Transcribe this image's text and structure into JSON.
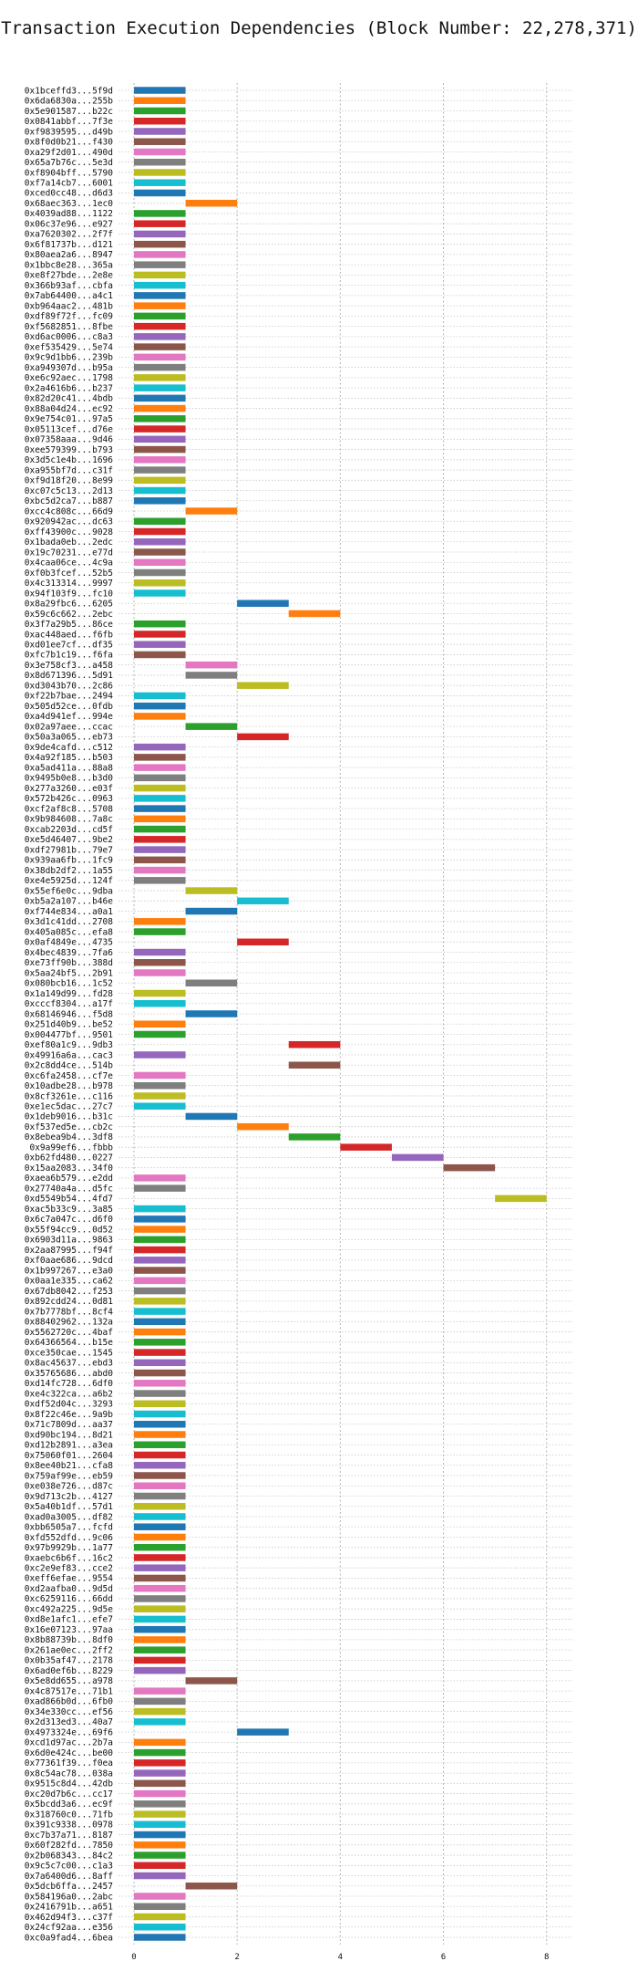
{
  "chart_data": {
    "type": "bar",
    "orientation": "horizontal-gantt",
    "title": "Transaction Execution Dependencies (Block Number: 22,278,371)",
    "xlabel": "",
    "ylabel": "",
    "xlim": [
      -0.3,
      8.5
    ],
    "xticks": [
      0,
      2,
      4,
      6,
      8
    ],
    "grid": true,
    "palette": [
      "#1f77b4",
      "#ff7f0e",
      "#2ca02c",
      "#d62728",
      "#9467bd",
      "#8c564b",
      "#e377c2",
      "#7f7f7f",
      "#bcbd22",
      "#17becf"
    ],
    "bars": [
      {
        "label": "0x1bceffd3...5f9d",
        "start": 0,
        "end": 1
      },
      {
        "label": "0x6da6830a...255b",
        "start": 0,
        "end": 1
      },
      {
        "label": "0x5e901587...b22c",
        "start": 0,
        "end": 1
      },
      {
        "label": "0x0841abbf...7f3e",
        "start": 0,
        "end": 1
      },
      {
        "label": "0xf9839595...d49b",
        "start": 0,
        "end": 1
      },
      {
        "label": "0x8f0d0b21...f430",
        "start": 0,
        "end": 1
      },
      {
        "label": "0xa29f2d01...490d",
        "start": 0,
        "end": 1
      },
      {
        "label": "0x65a7b76c...5e3d",
        "start": 0,
        "end": 1
      },
      {
        "label": "0xf8904bff...5790",
        "start": 0,
        "end": 1
      },
      {
        "label": "0xf7a14cb7...6001",
        "start": 0,
        "end": 1
      },
      {
        "label": "0xced0cc48...d6d3",
        "start": 0,
        "end": 1
      },
      {
        "label": "0x68aec363...1ec0",
        "start": 1,
        "end": 2
      },
      {
        "label": "0x4039ad88...1122",
        "start": 0,
        "end": 1
      },
      {
        "label": "0x06c37e96...e927",
        "start": 0,
        "end": 1
      },
      {
        "label": "0xa7620302...2f7f",
        "start": 0,
        "end": 1
      },
      {
        "label": "0x6f81737b...d121",
        "start": 0,
        "end": 1
      },
      {
        "label": "0x80aea2a6...8947",
        "start": 0,
        "end": 1
      },
      {
        "label": "0x1bbc8e28...365a",
        "start": 0,
        "end": 1
      },
      {
        "label": "0xe8f27bde...2e8e",
        "start": 0,
        "end": 1
      },
      {
        "label": "0x366b93af...cbfa",
        "start": 0,
        "end": 1
      },
      {
        "label": "0x7ab64400...a4c1",
        "start": 0,
        "end": 1
      },
      {
        "label": "0xb964aac2...481b",
        "start": 0,
        "end": 1
      },
      {
        "label": "0xdf89f72f...fc09",
        "start": 0,
        "end": 1
      },
      {
        "label": "0xf5682851...8fbe",
        "start": 0,
        "end": 1
      },
      {
        "label": "0xd6ac0006...c8a3",
        "start": 0,
        "end": 1
      },
      {
        "label": "0xef535429...5e74",
        "start": 0,
        "end": 1
      },
      {
        "label": "0x9c9d1bb6...239b",
        "start": 0,
        "end": 1
      },
      {
        "label": "0xa949307d...b95a",
        "start": 0,
        "end": 1
      },
      {
        "label": "0xe6c92aec...1798",
        "start": 0,
        "end": 1
      },
      {
        "label": "0x2a4616b6...b237",
        "start": 0,
        "end": 1
      },
      {
        "label": "0x82d20c41...4bdb",
        "start": 0,
        "end": 1
      },
      {
        "label": "0x88a04d24...ec92",
        "start": 0,
        "end": 1
      },
      {
        "label": "0x9e754c01...97a5",
        "start": 0,
        "end": 1
      },
      {
        "label": "0x05113cef...d76e",
        "start": 0,
        "end": 1
      },
      {
        "label": "0x07358aaa...9d46",
        "start": 0,
        "end": 1
      },
      {
        "label": "0xee579399...b793",
        "start": 0,
        "end": 1
      },
      {
        "label": "0x3d5c1e4b...1696",
        "start": 0,
        "end": 1
      },
      {
        "label": "0xa955bf7d...c31f",
        "start": 0,
        "end": 1
      },
      {
        "label": "0xf9d18f20...8e99",
        "start": 0,
        "end": 1
      },
      {
        "label": "0xc07c5c13...2d13",
        "start": 0,
        "end": 1
      },
      {
        "label": "0xbc5d2ca7...b887",
        "start": 0,
        "end": 1
      },
      {
        "label": "0xcc4c808c...66d9",
        "start": 1,
        "end": 2
      },
      {
        "label": "0x920942ac...dc63",
        "start": 0,
        "end": 1
      },
      {
        "label": "0xff43900c...9028",
        "start": 0,
        "end": 1
      },
      {
        "label": "0x1bada0eb...2edc",
        "start": 0,
        "end": 1
      },
      {
        "label": "0x19c70231...e77d",
        "start": 0,
        "end": 1
      },
      {
        "label": "0x4caa06ce...4c9a",
        "start": 0,
        "end": 1
      },
      {
        "label": "0xf0b3fcef...52b5",
        "start": 0,
        "end": 1
      },
      {
        "label": "0x4c313314...9997",
        "start": 0,
        "end": 1
      },
      {
        "label": "0x94f103f9...fc10",
        "start": 0,
        "end": 1
      },
      {
        "label": "0x8a29fbc6...6205",
        "start": 2,
        "end": 3
      },
      {
        "label": "0x59c6c662...2ebc",
        "start": 3,
        "end": 4
      },
      {
        "label": "0x3f7a29b5...86ce",
        "start": 0,
        "end": 1
      },
      {
        "label": "0xac448aed...f6fb",
        "start": 0,
        "end": 1
      },
      {
        "label": "0xd01ee7cf...df35",
        "start": 0,
        "end": 1
      },
      {
        "label": "0xfc7b1c19...f6fa",
        "start": 0,
        "end": 1
      },
      {
        "label": "0x3e758cf3...a458",
        "start": 1,
        "end": 2
      },
      {
        "label": "0x8d671396...5d91",
        "start": 1,
        "end": 2
      },
      {
        "label": "0xd3043b70...2c86",
        "start": 2,
        "end": 3
      },
      {
        "label": "0xf22b7bae...2494",
        "start": 0,
        "end": 1
      },
      {
        "label": "0x505d52ce...0fdb",
        "start": 0,
        "end": 1
      },
      {
        "label": "0xa4d941ef...994e",
        "start": 0,
        "end": 1
      },
      {
        "label": "0x02a97aee...ccac",
        "start": 1,
        "end": 2
      },
      {
        "label": "0x50a3a065...eb73",
        "start": 2,
        "end": 3
      },
      {
        "label": "0x9de4cafd...c512",
        "start": 0,
        "end": 1
      },
      {
        "label": "0x4a92f185...b503",
        "start": 0,
        "end": 1
      },
      {
        "label": "0xa5ad411a...88a8",
        "start": 0,
        "end": 1
      },
      {
        "label": "0x9495b0e8...b3d0",
        "start": 0,
        "end": 1
      },
      {
        "label": "0x277a3260...e03f",
        "start": 0,
        "end": 1
      },
      {
        "label": "0x572b426c...0963",
        "start": 0,
        "end": 1
      },
      {
        "label": "0xcf2af8c8...5708",
        "start": 0,
        "end": 1
      },
      {
        "label": "0x9b984608...7a8c",
        "start": 0,
        "end": 1
      },
      {
        "label": "0xcab2203d...cd5f",
        "start": 0,
        "end": 1
      },
      {
        "label": "0xe5d46407...9be2",
        "start": 0,
        "end": 1
      },
      {
        "label": "0xdf27981b...79e7",
        "start": 0,
        "end": 1
      },
      {
        "label": "0x939aa6fb...1fc9",
        "start": 0,
        "end": 1
      },
      {
        "label": "0x38db2df2...1a55",
        "start": 0,
        "end": 1
      },
      {
        "label": "0xe4e5925d...124f",
        "start": 0,
        "end": 1
      },
      {
        "label": "0x55ef6e0c...9dba",
        "start": 1,
        "end": 2
      },
      {
        "label": "0xb5a2a107...b46e",
        "start": 2,
        "end": 3
      },
      {
        "label": "0xf744e834...a0a1",
        "start": 1,
        "end": 2
      },
      {
        "label": "0x3d1c41dd...2708",
        "start": 0,
        "end": 1
      },
      {
        "label": "0x405a085c...efa8",
        "start": 0,
        "end": 1
      },
      {
        "label": "0x0af4849e...4735",
        "start": 2,
        "end": 3
      },
      {
        "label": "0x4bec4839...7fa6",
        "start": 0,
        "end": 1
      },
      {
        "label": "0xe73ff90b...388d",
        "start": 0,
        "end": 1
      },
      {
        "label": "0x5aa24bf5...2b91",
        "start": 0,
        "end": 1
      },
      {
        "label": "0x080bcb16...1c52",
        "start": 1,
        "end": 2
      },
      {
        "label": "0x1a149d99...fd28",
        "start": 0,
        "end": 1
      },
      {
        "label": "0xcccf8304...a17f",
        "start": 0,
        "end": 1
      },
      {
        "label": "0x68146946...f5d8",
        "start": 1,
        "end": 2
      },
      {
        "label": "0x251d40b9...be52",
        "start": 0,
        "end": 1
      },
      {
        "label": "0x004477bf...9501",
        "start": 0,
        "end": 1
      },
      {
        "label": "0xef80a1c9...9db3",
        "start": 3,
        "end": 4
      },
      {
        "label": "0x49916a6a...cac3",
        "start": 0,
        "end": 1
      },
      {
        "label": "0x2c8dd4ce...514b",
        "start": 3,
        "end": 4
      },
      {
        "label": "0xc6fa2458...cf7e",
        "start": 0,
        "end": 1
      },
      {
        "label": "0x10adbe28...b978",
        "start": 0,
        "end": 1
      },
      {
        "label": "0x8cf3261e...c116",
        "start": 0,
        "end": 1
      },
      {
        "label": "0xe1ec5dac...27c7",
        "start": 0,
        "end": 1
      },
      {
        "label": "0x1deb9016...b31c",
        "start": 1,
        "end": 2
      },
      {
        "label": "0xf537ed5e...cb2c",
        "start": 2,
        "end": 3
      },
      {
        "label": "0x8ebea9b4...3df8",
        "start": 3,
        "end": 4
      },
      {
        "label": "0x9a99ef6...fbbb",
        "start": 4,
        "end": 5
      },
      {
        "label": "0xb62fd480...0227",
        "start": 5,
        "end": 6
      },
      {
        "label": "0x15aa2083...34f0",
        "start": 6,
        "end": 7
      },
      {
        "label": "0xaea6b579...e2dd",
        "start": 0,
        "end": 1
      },
      {
        "label": "0x27740a4a...d5fc",
        "start": 0,
        "end": 1
      },
      {
        "label": "0xd5549b54...4fd7",
        "start": 7,
        "end": 8
      },
      {
        "label": "0xac5b33c9...3a85",
        "start": 0,
        "end": 1
      },
      {
        "label": "0x6c7a047c...d6f0",
        "start": 0,
        "end": 1
      },
      {
        "label": "0x55f94cc9...0d52",
        "start": 0,
        "end": 1
      },
      {
        "label": "0x6903d11a...9863",
        "start": 0,
        "end": 1
      },
      {
        "label": "0x2aa87995...f94f",
        "start": 0,
        "end": 1
      },
      {
        "label": "0xf0aae686...9dcd",
        "start": 0,
        "end": 1
      },
      {
        "label": "0x1b997267...e3a0",
        "start": 0,
        "end": 1
      },
      {
        "label": "0x0aa1e335...ca62",
        "start": 0,
        "end": 1
      },
      {
        "label": "0x67db8042...f253",
        "start": 0,
        "end": 1
      },
      {
        "label": "0x892cdd24...0d81",
        "start": 0,
        "end": 1
      },
      {
        "label": "0x7b7778bf...8cf4",
        "start": 0,
        "end": 1
      },
      {
        "label": "0x88402962...132a",
        "start": 0,
        "end": 1
      },
      {
        "label": "0x5562720c...4baf",
        "start": 0,
        "end": 1
      },
      {
        "label": "0x64366564...b15e",
        "start": 0,
        "end": 1
      },
      {
        "label": "0xce350cae...1545",
        "start": 0,
        "end": 1
      },
      {
        "label": "0x8ac45637...ebd3",
        "start": 0,
        "end": 1
      },
      {
        "label": "0x35765686...abd0",
        "start": 0,
        "end": 1
      },
      {
        "label": "0xd14fc728...6df0",
        "start": 0,
        "end": 1
      },
      {
        "label": "0xe4c322ca...a6b2",
        "start": 0,
        "end": 1
      },
      {
        "label": "0xdf52d04c...3293",
        "start": 0,
        "end": 1
      },
      {
        "label": "0x8f22c46e...9a9b",
        "start": 0,
        "end": 1
      },
      {
        "label": "0x71c7809d...aa37",
        "start": 0,
        "end": 1
      },
      {
        "label": "0xd90bc194...8d21",
        "start": 0,
        "end": 1
      },
      {
        "label": "0xd12b2891...a3ea",
        "start": 0,
        "end": 1
      },
      {
        "label": "0x75060f01...2604",
        "start": 0,
        "end": 1
      },
      {
        "label": "0x8ee40b21...cfa8",
        "start": 0,
        "end": 1
      },
      {
        "label": "0x759af99e...eb59",
        "start": 0,
        "end": 1
      },
      {
        "label": "0xe038e726...d87c",
        "start": 0,
        "end": 1
      },
      {
        "label": "0x9d713c2b...4127",
        "start": 0,
        "end": 1
      },
      {
        "label": "0x5a40b1df...57d1",
        "start": 0,
        "end": 1
      },
      {
        "label": "0xad0a3005...df82",
        "start": 0,
        "end": 1
      },
      {
        "label": "0xbb6505a7...fcfd",
        "start": 0,
        "end": 1
      },
      {
        "label": "0xfd552dfd...9c06",
        "start": 0,
        "end": 1
      },
      {
        "label": "0x97b9929b...1a77",
        "start": 0,
        "end": 1
      },
      {
        "label": "0xaebc6b6f...16c2",
        "start": 0,
        "end": 1
      },
      {
        "label": "0xc2e9ef83...cce2",
        "start": 0,
        "end": 1
      },
      {
        "label": "0xeff6efae...9554",
        "start": 0,
        "end": 1
      },
      {
        "label": "0xd2aafba0...9d5d",
        "start": 0,
        "end": 1
      },
      {
        "label": "0xc6259116...66dd",
        "start": 0,
        "end": 1
      },
      {
        "label": "0xc492a225...9d5e",
        "start": 0,
        "end": 1
      },
      {
        "label": "0xd8e1afc1...efe7",
        "start": 0,
        "end": 1
      },
      {
        "label": "0x16e07123...97aa",
        "start": 0,
        "end": 1
      },
      {
        "label": "0x8b88739b...8df0",
        "start": 0,
        "end": 1
      },
      {
        "label": "0x261ae0ec...2ff2",
        "start": 0,
        "end": 1
      },
      {
        "label": "0x0b35af47...2178",
        "start": 0,
        "end": 1
      },
      {
        "label": "0x6ad0ef6b...8229",
        "start": 0,
        "end": 1
      },
      {
        "label": "0x5e8dd655...a978",
        "start": 1,
        "end": 2
      },
      {
        "label": "0x4c87517e...71b1",
        "start": 0,
        "end": 1
      },
      {
        "label": "0xad866b0d...6fb0",
        "start": 0,
        "end": 1
      },
      {
        "label": "0x34e330cc...ef56",
        "start": 0,
        "end": 1
      },
      {
        "label": "0x2d313ed3...40a7",
        "start": 0,
        "end": 1
      },
      {
        "label": "0x4973324e...69f6",
        "start": 2,
        "end": 3
      },
      {
        "label": "0xcd1d97ac...2b7a",
        "start": 0,
        "end": 1
      },
      {
        "label": "0x6d0e424c...be00",
        "start": 0,
        "end": 1
      },
      {
        "label": "0x77361f39...f0ea",
        "start": 0,
        "end": 1
      },
      {
        "label": "0x8c54ac78...038a",
        "start": 0,
        "end": 1
      },
      {
        "label": "0x9515c8d4...42db",
        "start": 0,
        "end": 1
      },
      {
        "label": "0xc20d7b6c...cc17",
        "start": 0,
        "end": 1
      },
      {
        "label": "0x5bcdd3a6...ec9f",
        "start": 0,
        "end": 1
      },
      {
        "label": "0x318760c0...71fb",
        "start": 0,
        "end": 1
      },
      {
        "label": "0x391c9338...0978",
        "start": 0,
        "end": 1
      },
      {
        "label": "0xc7b37a71...8187",
        "start": 0,
        "end": 1
      },
      {
        "label": "0x60f282fd...7850",
        "start": 0,
        "end": 1
      },
      {
        "label": "0x2b068343...84c2",
        "start": 0,
        "end": 1
      },
      {
        "label": "0x9c5c7c00...c1a3",
        "start": 0,
        "end": 1
      },
      {
        "label": "0x7a6400d6...8aff",
        "start": 0,
        "end": 1
      },
      {
        "label": "0x5dcb6ffa...2457",
        "start": 1,
        "end": 2
      },
      {
        "label": "0x584196a0...2abc",
        "start": 0,
        "end": 1
      },
      {
        "label": "0x2416791b...a651",
        "start": 0,
        "end": 1
      },
      {
        "label": "0x462d94f3...c37f",
        "start": 0,
        "end": 1
      },
      {
        "label": "0x24cf92aa...e356",
        "start": 0,
        "end": 1
      },
      {
        "label": "0xc0a9fad4...6bea",
        "start": 0,
        "end": 1
      }
    ]
  }
}
